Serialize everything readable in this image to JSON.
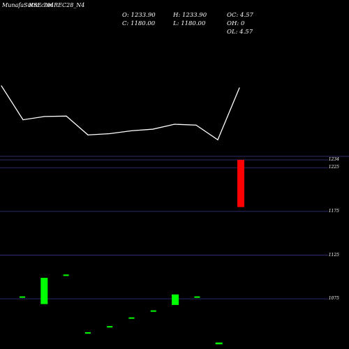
{
  "watermark": {
    "brand": "MunafaSutra.com",
    "symbol": "NSE 704REC28_N4"
  },
  "stats": {
    "open": "O: 1233.90",
    "close": "C: 1180.00",
    "high": "H: 1233.90",
    "low": "L: 1180.00",
    "oc": "OC: 4.57",
    "oh": "OH: 0",
    "ol": "OL: 4.57"
  },
  "colors": {
    "background": "#000000",
    "line": "#ffffff",
    "up": "#00ff00",
    "down": "#ff0000",
    "grid": "#2b2b6b"
  },
  "chart_data": {
    "type": "candlestick",
    "upper_line": {
      "values": [
        1260,
        1177,
        1185,
        1186,
        1140,
        1143,
        1150,
        1154,
        1166,
        1164,
        1128,
        1255
      ]
    },
    "y_ticks": [
      1234,
      1225,
      1175,
      1125,
      1075
    ],
    "ylim": [
      1020,
      1238
    ],
    "candles": [
      {
        "open": 1077,
        "close": 1077,
        "high": 1077,
        "low": 1077
      },
      {
        "open": 1069,
        "close": 1099,
        "high": 1099,
        "low": 1069
      },
      {
        "open": 1102,
        "close": 1102,
        "high": 1102,
        "low": 1102
      },
      {
        "open": 1036,
        "close": 1036,
        "high": 1036,
        "low": 1036
      },
      {
        "open": 1043,
        "close": 1043,
        "high": 1043,
        "low": 1043
      },
      {
        "open": 1053,
        "close": 1053,
        "high": 1053,
        "low": 1053
      },
      {
        "open": 1061,
        "close": 1061,
        "high": 1061,
        "low": 1061
      },
      {
        "open": 1068,
        "close": 1080,
        "high": 1080,
        "low": 1068
      },
      {
        "open": 1077,
        "close": 1077,
        "high": 1077,
        "low": 1077
      },
      {
        "open": 1023,
        "close": 1025,
        "high": 1025,
        "low": 1023
      },
      {
        "open": 1233.9,
        "close": 1180,
        "high": 1233.9,
        "low": 1180
      }
    ]
  }
}
